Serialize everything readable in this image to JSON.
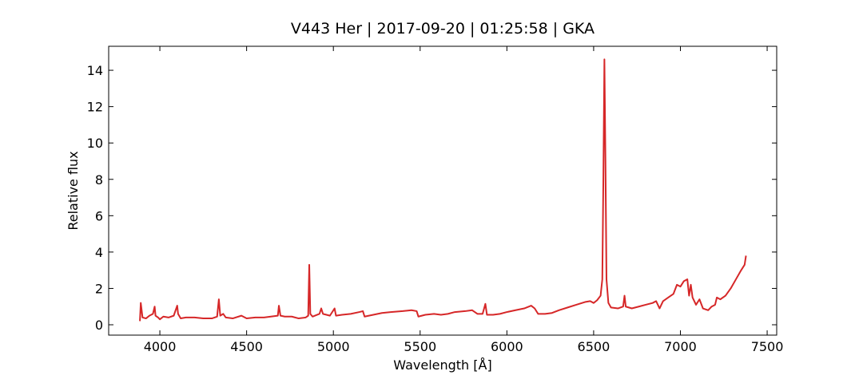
{
  "chart_data": {
    "type": "line",
    "title": "V443 Her | 2017-09-20 | 01:25:58 | GKA",
    "x_label": "Wavelength [Å]",
    "y_label": "Relative flux",
    "xlim": [
      3705,
      7555
    ],
    "ylim": [
      -0.57,
      15.32
    ],
    "xticks": [
      4000,
      4500,
      5000,
      5500,
      6000,
      6500,
      7000,
      7500
    ],
    "yticks": [
      0,
      2,
      4,
      6,
      8,
      10,
      12,
      14
    ],
    "grid": false,
    "x": [
      3885,
      3890,
      3895,
      3900,
      3920,
      3940,
      3960,
      3970,
      3975,
      3990,
      4000,
      4020,
      4050,
      4080,
      4100,
      4105,
      4120,
      4150,
      4200,
      4250,
      4300,
      4330,
      4340,
      4348,
      4365,
      4380,
      4420,
      4470,
      4500,
      4550,
      4600,
      4640,
      4680,
      4686,
      4695,
      4720,
      4760,
      4800,
      4840,
      4855,
      4861,
      4867,
      4880,
      4920,
      4930,
      4940,
      4980,
      5007,
      5015,
      5050,
      5100,
      5150,
      5170,
      5180,
      5230,
      5280,
      5330,
      5400,
      5450,
      5480,
      5490,
      5530,
      5580,
      5620,
      5660,
      5700,
      5760,
      5800,
      5830,
      5860,
      5876,
      5885,
      5920,
      5960,
      6000,
      6050,
      6100,
      6140,
      6160,
      6180,
      6220,
      6260,
      6300,
      6350,
      6400,
      6450,
      6480,
      6500,
      6520,
      6540,
      6550,
      6556,
      6562,
      6568,
      6574,
      6585,
      6600,
      6640,
      6670,
      6678,
      6685,
      6720,
      6760,
      6800,
      6840,
      6860,
      6880,
      6900,
      6930,
      6960,
      6980,
      7000,
      7020,
      7040,
      7050,
      7060,
      7070,
      7090,
      7110,
      7130,
      7160,
      7180,
      7200,
      7210,
      7230,
      7260,
      7290,
      7320,
      7350,
      7370,
      7378
    ],
    "series": [
      {
        "name": "flux",
        "color": "#d62728",
        "values": [
          0.2,
          1.2,
          0.8,
          0.4,
          0.35,
          0.5,
          0.6,
          1.0,
          0.5,
          0.4,
          0.3,
          0.45,
          0.4,
          0.5,
          1.05,
          0.6,
          0.35,
          0.4,
          0.4,
          0.35,
          0.35,
          0.45,
          1.4,
          0.5,
          0.6,
          0.4,
          0.35,
          0.5,
          0.35,
          0.4,
          0.4,
          0.45,
          0.5,
          1.05,
          0.5,
          0.45,
          0.45,
          0.35,
          0.4,
          0.5,
          3.3,
          0.6,
          0.45,
          0.6,
          0.9,
          0.6,
          0.5,
          0.9,
          0.5,
          0.55,
          0.6,
          0.7,
          0.75,
          0.45,
          0.55,
          0.65,
          0.7,
          0.75,
          0.8,
          0.75,
          0.45,
          0.55,
          0.6,
          0.55,
          0.6,
          0.7,
          0.75,
          0.8,
          0.6,
          0.6,
          1.15,
          0.55,
          0.55,
          0.6,
          0.7,
          0.8,
          0.9,
          1.05,
          0.9,
          0.6,
          0.6,
          0.65,
          0.8,
          0.95,
          1.1,
          1.25,
          1.3,
          1.2,
          1.35,
          1.6,
          2.5,
          8,
          14.6,
          9,
          2.5,
          1.2,
          0.95,
          0.9,
          1.0,
          1.6,
          1.0,
          0.9,
          1.0,
          1.1,
          1.2,
          1.3,
          0.9,
          1.3,
          1.5,
          1.7,
          2.2,
          2.1,
          2.4,
          2.5,
          1.6,
          2.2,
          1.5,
          1.1,
          1.4,
          0.9,
          0.8,
          1.0,
          1.1,
          1.5,
          1.4,
          1.6,
          2.0,
          2.5,
          3.0,
          3.3,
          3.8
        ]
      }
    ]
  }
}
